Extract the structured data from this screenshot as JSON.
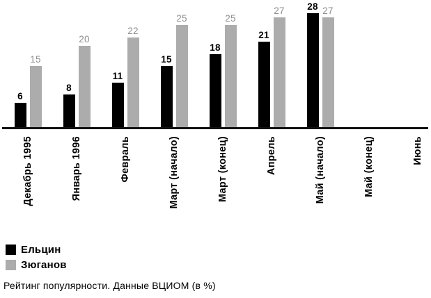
{
  "chart_data": {
    "type": "bar",
    "caption": "Рейтинг популярности. Данные ВЦИОМ (в %)",
    "categories": [
      "Декабрь 1995",
      "Январь 1996",
      "Февраль",
      "Март (начало)",
      "Март (конец)",
      "Апрель",
      "Май (начало)",
      "Май (конец)",
      "Июнь"
    ],
    "series": [
      {
        "name": "Ельцин",
        "color": "#000000",
        "value_label_color": "#000000",
        "values": [
          6,
          8,
          11,
          15,
          18,
          21,
          28,
          null,
          null
        ]
      },
      {
        "name": "Зюганов",
        "color": "#acacac",
        "value_label_color": "#8f8f8f",
        "values": [
          15,
          20,
          22,
          25,
          25,
          27,
          27,
          null,
          null
        ]
      }
    ],
    "ylim": [
      0,
      29
    ],
    "grid": false,
    "value_labels": true,
    "legend_position": "bottom-left",
    "axis_color": "#111111"
  }
}
